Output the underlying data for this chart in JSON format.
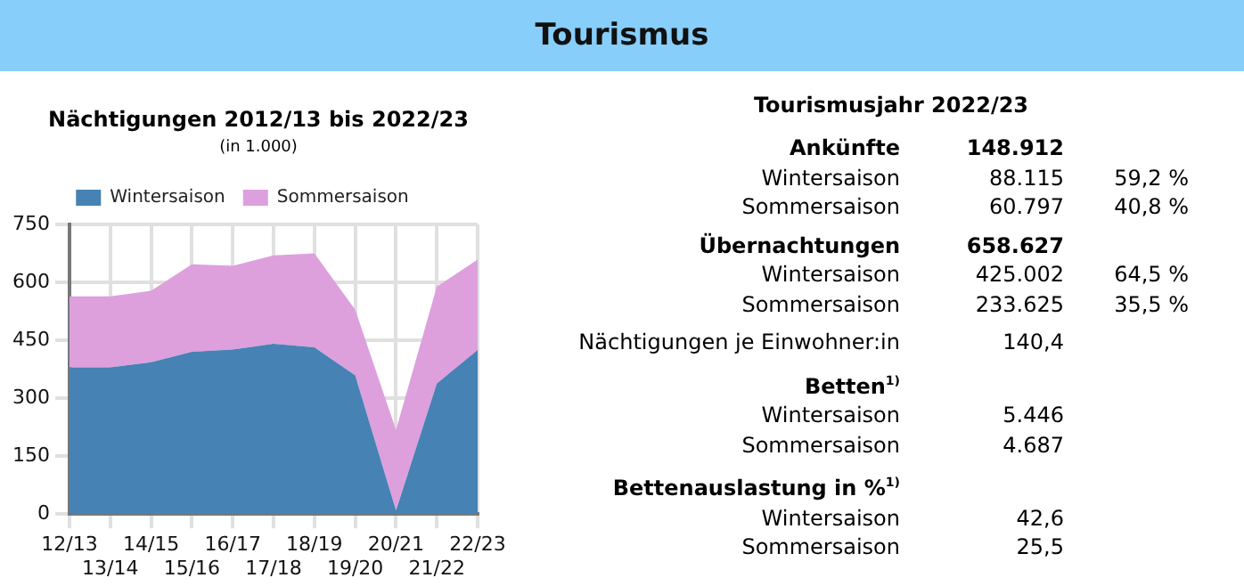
{
  "chart_data": [
    {
      "type": "other",
      "title": "Tourismus"
    },
    {
      "type": "area",
      "title": "Nächtigungen 2012/13 bis 2022/23",
      "annotations": [
        "(in 1.000)"
      ],
      "categories": [
        "12/13",
        "13/14",
        "14/15",
        "15/16",
        "16/17",
        "17/18",
        "18/19",
        "19/20",
        "20/21",
        "21/22",
        "22/23"
      ],
      "stacked": true,
      "series": [
        {
          "name": "Wintersaison",
          "color": "#4682b4",
          "values": [
            380,
            380,
            393,
            420,
            426,
            441,
            432,
            359,
            9,
            338,
            425
          ]
        },
        {
          "name": "Sommersaison",
          "color": "#dda0dd",
          "values": [
            184,
            184,
            185,
            227,
            217,
            229,
            243,
            170,
            209,
            251,
            234
          ]
        }
      ],
      "ylim": [
        0,
        750
      ],
      "yticks": [
        0,
        150,
        300,
        450,
        600,
        750
      ],
      "grid": true,
      "legend": "top"
    },
    {
      "type": "other",
      "title": "Tourismusjahr 2022/23",
      "categories": [
        "Ankünfte",
        "Wintersaison",
        "Sommersaison",
        "Übernachtungen",
        "Wintersaison",
        "Sommersaison",
        "Nächtigungen je Einwohner:in",
        "Betten$^{1)}$",
        "Wintersaison",
        "Sommersaison",
        "Bettenauslastung in %$^{1)}$",
        "Wintersaison",
        "Sommersaison"
      ],
      "series": [
        {
          "values": [
            148912,
            88115,
            60797,
            658627,
            425002,
            233625,
            140.4,
            null,
            5446,
            4687,
            null,
            42.6,
            25.5
          ],
          "value_labels": [
            "148.912",
            "88.115",
            "60.797",
            "658.627",
            "425.002",
            "233.625",
            "140,4",
            null,
            "5.446",
            "4.687",
            null,
            "42,6",
            "25,5"
          ]
        },
        {
          "values": [
            null,
            59.2,
            40.8,
            null,
            64.5,
            35.5,
            null,
            null,
            null,
            null,
            null,
            null,
            null
          ],
          "value_labels": [
            null,
            "59,2 %",
            "40,8 %",
            null,
            "64,5 %",
            "35,5 %",
            null,
            null,
            null,
            null,
            null,
            null,
            null
          ]
        }
      ]
    }
  ]
}
